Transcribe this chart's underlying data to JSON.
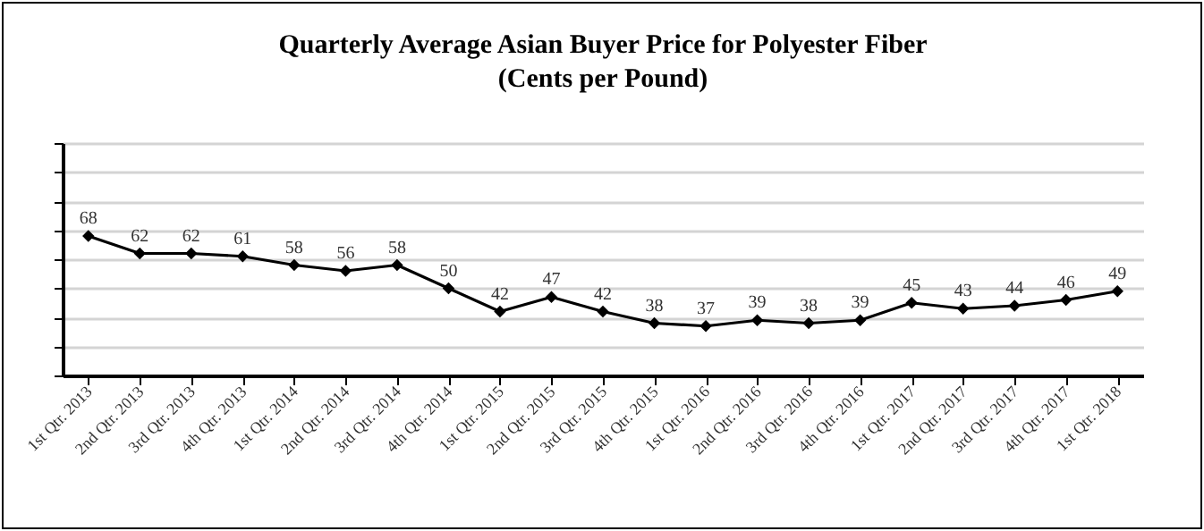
{
  "chart_data": {
    "type": "line",
    "title": "Quarterly Average Asian Buyer Price for Polyester Fiber",
    "subtitle": "(Cents per Pound)",
    "categories": [
      "1st Qtr. 2013",
      "2nd Qtr. 2013",
      "3rd Qtr. 2013",
      "4th Qtr. 2013",
      "1st Qtr. 2014",
      "2nd Qtr. 2014",
      "3rd Qtr. 2014",
      "4th Qtr. 2014",
      "1st Qtr. 2015",
      "2nd Qtr. 2015",
      "3rd Qtr. 2015",
      "4th Qtr. 2015",
      "1st Qtr. 2016",
      "2nd Qtr. 2016",
      "3rd Qtr. 2016",
      "4th Qtr. 2016",
      "1st Qtr. 2017",
      "2nd Qtr. 2017",
      "3rd Qtr. 2017",
      "4th Qtr. 2017",
      "1st Qtr. 2018"
    ],
    "values": [
      68,
      62,
      62,
      61,
      58,
      56,
      58,
      50,
      42,
      47,
      42,
      38,
      37,
      39,
      38,
      39,
      45,
      43,
      44,
      46,
      49
    ],
    "color": "#000000",
    "ylim": [
      20,
      100
    ],
    "yticks": [
      {
        "value": 20,
        "label": null
      },
      {
        "value": 30,
        "label": null
      },
      {
        "value": 40,
        "label": null
      },
      {
        "value": 50,
        "label": null
      },
      {
        "value": 60,
        "label": null
      },
      {
        "value": 70,
        "label": null
      },
      {
        "value": 80,
        "label": null
      },
      {
        "value": 90,
        "label": null
      },
      {
        "value": 100,
        "label": null
      }
    ],
    "grid": "y",
    "tick_labels": "x",
    "marker": "diamond",
    "line_style": "solid",
    "data_labels": true
  }
}
